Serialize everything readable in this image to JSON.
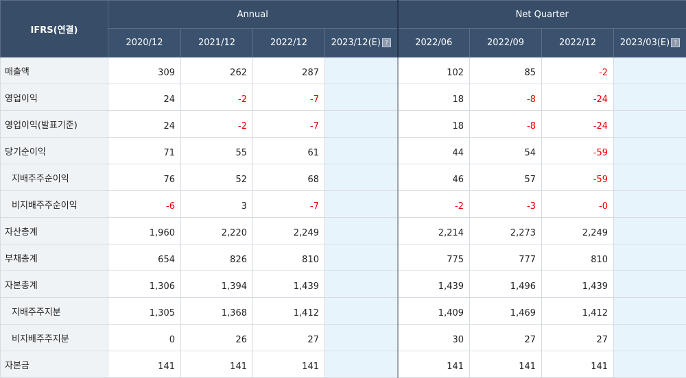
{
  "header": {
    "ifrs_label": "IFRS(연결)",
    "annual_label": "Annual",
    "quarter_label": "Net Quarter",
    "annual_periods": [
      "2020/12",
      "2021/12",
      "2022/12",
      "2023/12(E)"
    ],
    "quarter_periods": [
      "2022/06",
      "2022/09",
      "2022/12",
      "2023/03(E)"
    ],
    "estimate_icon": "help-icon"
  },
  "rows": [
    {
      "label": "매출액",
      "indent": false,
      "values": [
        "309",
        "262",
        "287",
        "",
        "102",
        "85",
        "-2",
        ""
      ]
    },
    {
      "label": "영업이익",
      "indent": false,
      "values": [
        "24",
        "-2",
        "-7",
        "",
        "18",
        "-8",
        "-24",
        ""
      ]
    },
    {
      "label": "영업이익(발표기준)",
      "indent": false,
      "values": [
        "24",
        "-2",
        "-7",
        "",
        "18",
        "-8",
        "-24",
        ""
      ]
    },
    {
      "label": "당기순이익",
      "indent": false,
      "values": [
        "71",
        "55",
        "61",
        "",
        "44",
        "54",
        "-59",
        ""
      ]
    },
    {
      "label": "지배주주순이익",
      "indent": true,
      "values": [
        "76",
        "52",
        "68",
        "",
        "46",
        "57",
        "-59",
        ""
      ]
    },
    {
      "label": "비지배주주순이익",
      "indent": true,
      "values": [
        "-6",
        "3",
        "-7",
        "",
        "-2",
        "-3",
        "-0",
        ""
      ]
    },
    {
      "label": "자산총계",
      "indent": false,
      "values": [
        "1,960",
        "2,220",
        "2,249",
        "",
        "2,214",
        "2,273",
        "2,249",
        ""
      ]
    },
    {
      "label": "부채총계",
      "indent": false,
      "values": [
        "654",
        "826",
        "810",
        "",
        "775",
        "777",
        "810",
        ""
      ]
    },
    {
      "label": "자본총계",
      "indent": false,
      "values": [
        "1,306",
        "1,394",
        "1,439",
        "",
        "1,439",
        "1,496",
        "1,439",
        ""
      ]
    },
    {
      "label": "지배주주지분",
      "indent": true,
      "values": [
        "1,305",
        "1,368",
        "1,412",
        "",
        "1,409",
        "1,469",
        "1,412",
        ""
      ]
    },
    {
      "label": "비지배주주지분",
      "indent": true,
      "values": [
        "0",
        "26",
        "27",
        "",
        "30",
        "27",
        "27",
        ""
      ]
    },
    {
      "label": "자본금",
      "indent": false,
      "values": [
        "141",
        "141",
        "141",
        "",
        "141",
        "141",
        "141",
        ""
      ]
    }
  ],
  "colors": {
    "header_bg": "#374d68",
    "label_bg": "#f0f3f6",
    "estimate_bg": "#e8f4fb",
    "negative": "#e60000"
  }
}
